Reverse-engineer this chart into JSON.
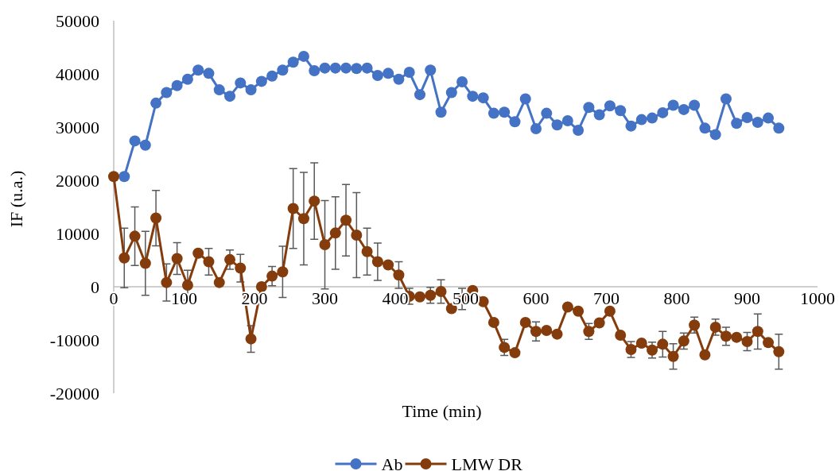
{
  "chart_data": {
    "type": "line",
    "xlabel": "Time (min)",
    "ylabel": "IF (u.a.)",
    "xlim": [
      0,
      1000
    ],
    "xticks": [
      0,
      100,
      200,
      300,
      400,
      500,
      600,
      700,
      800,
      900,
      1000
    ],
    "ylim": [
      -20000,
      50000
    ],
    "yticks": [
      -20000,
      -10000,
      0,
      10000,
      20000,
      30000,
      40000,
      50000
    ],
    "grid": false,
    "legend": "bottom",
    "marker": "circle",
    "line_style": "solid",
    "series": [
      {
        "name": "Ab",
        "color": "#4472c4",
        "x": [
          15,
          30,
          45,
          60,
          75,
          90,
          105,
          120,
          135,
          150,
          165,
          180,
          195,
          210,
          225,
          240,
          255,
          270,
          285,
          300,
          315,
          330,
          345,
          360,
          375,
          390,
          405,
          420,
          435,
          450,
          465,
          480,
          495,
          510,
          525,
          540,
          555,
          570,
          585,
          600,
          615,
          630,
          645,
          660,
          675,
          690,
          705,
          720,
          735,
          750,
          765,
          780,
          795,
          810,
          825,
          840,
          855,
          870,
          885,
          900,
          915,
          930,
          945
        ],
        "values": [
          20700,
          27400,
          26600,
          34500,
          36500,
          37800,
          39000,
          40700,
          40100,
          37000,
          35800,
          38300,
          37000,
          38600,
          39600,
          40700,
          42200,
          43300,
          40600,
          41100,
          41100,
          41100,
          41000,
          41100,
          39700,
          40100,
          39000,
          40300,
          36100,
          40700,
          32800,
          36500,
          38500,
          35800,
          35500,
          32600,
          32800,
          31000,
          35300,
          29700,
          32600,
          30400,
          31200,
          29400,
          33700,
          32300,
          34000,
          33100,
          30200,
          31400,
          31700,
          32700,
          34100,
          33300,
          34100,
          29800,
          28600,
          35300,
          30700,
          31800,
          30900,
          31700,
          29800
        ]
      },
      {
        "name": "LMW DR",
        "color": "#843c0c",
        "x": [
          0,
          15,
          30,
          45,
          60,
          75,
          90,
          105,
          120,
          135,
          150,
          165,
          180,
          195,
          210,
          225,
          240,
          255,
          270,
          285,
          300,
          315,
          330,
          345,
          360,
          375,
          390,
          405,
          420,
          435,
          450,
          465,
          480,
          495,
          510,
          525,
          540,
          555,
          570,
          585,
          600,
          615,
          630,
          645,
          660,
          675,
          690,
          705,
          720,
          735,
          750,
          765,
          780,
          795,
          810,
          825,
          840,
          855,
          870,
          885,
          900,
          915,
          930,
          945
        ],
        "values": [
          20700,
          5400,
          9500,
          4400,
          12900,
          800,
          5300,
          300,
          6300,
          4700,
          800,
          5100,
          3500,
          -9800,
          0,
          2000,
          2800,
          14700,
          12800,
          16100,
          7900,
          10100,
          12500,
          9700,
          6600,
          4700,
          4100,
          2200,
          -1800,
          -1900,
          -1600,
          -900,
          -4100,
          -2300,
          -700,
          -2800,
          -6700,
          -11400,
          -12400,
          -6700,
          -8400,
          -8200,
          -8900,
          -3800,
          -4600,
          -8400,
          -6800,
          -4600,
          -9100,
          -11800,
          -10600,
          -11900,
          -10800,
          -13100,
          -10200,
          -7200,
          -12800,
          -7600,
          -9300,
          -9500,
          -10300,
          -8400,
          -10500,
          -12200
        ],
        "errors": [
          null,
          5600,
          5500,
          6000,
          5200,
          3500,
          3000,
          2800,
          null,
          2500,
          null,
          1800,
          2600,
          2500,
          null,
          1800,
          4800,
          7500,
          8700,
          7200,
          8300,
          6800,
          6700,
          8000,
          4400,
          3500,
          null,
          2500,
          1500,
          null,
          1500,
          2200,
          null,
          2000,
          null,
          null,
          null,
          1500,
          null,
          null,
          1800,
          null,
          null,
          null,
          null,
          1500,
          null,
          null,
          null,
          1500,
          null,
          1500,
          2400,
          2400,
          1500,
          1500,
          null,
          1500,
          1700,
          null,
          1700,
          3300,
          null,
          3300
        ]
      }
    ]
  }
}
